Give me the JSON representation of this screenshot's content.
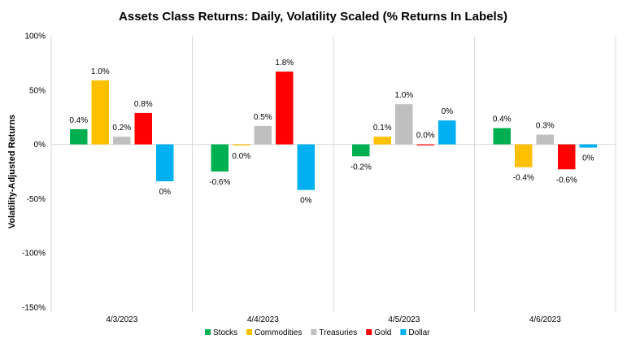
{
  "chart_data": {
    "type": "bar",
    "title": "Assets Class Returns: Daily, Volatility Scaled (% Returns In Labels)",
    "xlabel": "",
    "ylabel": "Volatility-Adjusted Returns",
    "ylim": [
      -150,
      100
    ],
    "yticks": [
      "100%",
      "50%",
      "0%",
      "-50%",
      "-100%",
      "-150%"
    ],
    "ytick_values": [
      100,
      50,
      0,
      -50,
      -100,
      -150
    ],
    "categories": [
      "4/3/2023",
      "4/4/2023",
      "4/5/2023",
      "4/6/2023"
    ],
    "grid": false,
    "legend_position": "bottom",
    "series": [
      {
        "name": "Stocks",
        "color": "#00b050",
        "values": [
          14,
          -25,
          -11,
          15
        ],
        "labels": [
          "0.4%",
          "-0.6%",
          "-0.2%",
          "0.4%"
        ]
      },
      {
        "name": "Commodities",
        "color": "#ffc000",
        "values": [
          59,
          -1,
          7,
          -21
        ],
        "labels": [
          "1.0%",
          "0.0%",
          "0.1%",
          "-0.4%"
        ]
      },
      {
        "name": "Treasuries",
        "color": "#bfbfbf",
        "values": [
          7,
          17,
          37,
          9
        ],
        "labels": [
          "0.2%",
          "0.5%",
          "1.0%",
          "0.3%"
        ]
      },
      {
        "name": "Gold",
        "color": "#ff0000",
        "values": [
          29,
          67,
          0,
          -23
        ],
        "labels": [
          "0.8%",
          "1.8%",
          "0.0%",
          "-0.6%"
        ]
      },
      {
        "name": "Dollar",
        "color": "#00b0f0",
        "values": [
          -34,
          -42,
          22,
          -3
        ],
        "labels": [
          "0%",
          "0%",
          "0%",
          "0%"
        ]
      }
    ]
  }
}
